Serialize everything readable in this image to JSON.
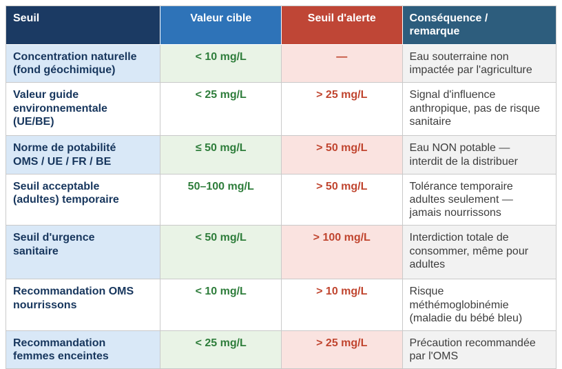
{
  "table": {
    "columns": [
      {
        "label": "Seuil",
        "bg": "#1b3a63"
      },
      {
        "label": "Valeur cible",
        "bg": "#2e73b8"
      },
      {
        "label": "Seuil d'alerte",
        "bg": "#bf4636"
      },
      {
        "label": "Conséquence /\nremarque",
        "bg": "#2d5d7d"
      }
    ],
    "rows": [
      {
        "seuil": "Concentration naturelle\n(fond géochimique)",
        "valeur_cible": "< 10 mg/L",
        "seuil_alerte": "—",
        "consequence": "Eau souterraine non\nimpactée par l'agriculture"
      },
      {
        "seuil": "Valeur guide\nenvironnementale\n(UE/BE)",
        "valeur_cible": "< 25 mg/L",
        "seuil_alerte": "> 25 mg/L",
        "consequence": "Signal d'influence\nanthropique, pas de risque\nsanitaire"
      },
      {
        "seuil": "Norme de potabilité\nOMS / UE / FR / BE",
        "valeur_cible": "≤ 50 mg/L",
        "seuil_alerte": "> 50 mg/L",
        "consequence": "Eau NON potable —\ninterdit de la distribuer"
      },
      {
        "seuil": "Seuil acceptable\n(adultes) temporaire",
        "valeur_cible": "50–100 mg/L",
        "seuil_alerte": "> 50 mg/L",
        "consequence": "Tolérance temporaire\nadultes seulement —\njamais nourrissons"
      },
      {
        "seuil": "Seuil d'urgence\nsanitaire",
        "valeur_cible": "< 50 mg/L",
        "seuil_alerte": "> 100 mg/L",
        "consequence": "Interdiction totale de\nconsommer, même pour\nadultes"
      },
      {
        "seuil": "Recommandation OMS\nnourrissons",
        "valeur_cible": "< 10 mg/L",
        "seuil_alerte": "> 10 mg/L",
        "consequence": "Risque\nméthémoglobinémie\n(maladie du bébé bleu)"
      },
      {
        "seuil": "Recommandation\nfemmes enceintes",
        "valeur_cible": "< 25 mg/L",
        "seuil_alerte": "> 25 mg/L",
        "consequence": "Précaution recommandée\npar l'OMS"
      }
    ],
    "colors": {
      "header_seuil_bg": "#1b3a63",
      "header_cible_bg": "#2e73b8",
      "header_alerte_bg": "#bf4636",
      "header_consequence_bg": "#2d5d7d",
      "row_tint_blue": "#d9e8f7",
      "row_tint_green": "#e9f3e6",
      "row_tint_pink": "#fae3e0",
      "row_tint_gray": "#f2f2f2",
      "text_navy": "#17365d",
      "text_green": "#2e7d3b",
      "text_red": "#c0452f",
      "text_gray": "#3d3d3d",
      "border": "#c9c9c9"
    }
  }
}
